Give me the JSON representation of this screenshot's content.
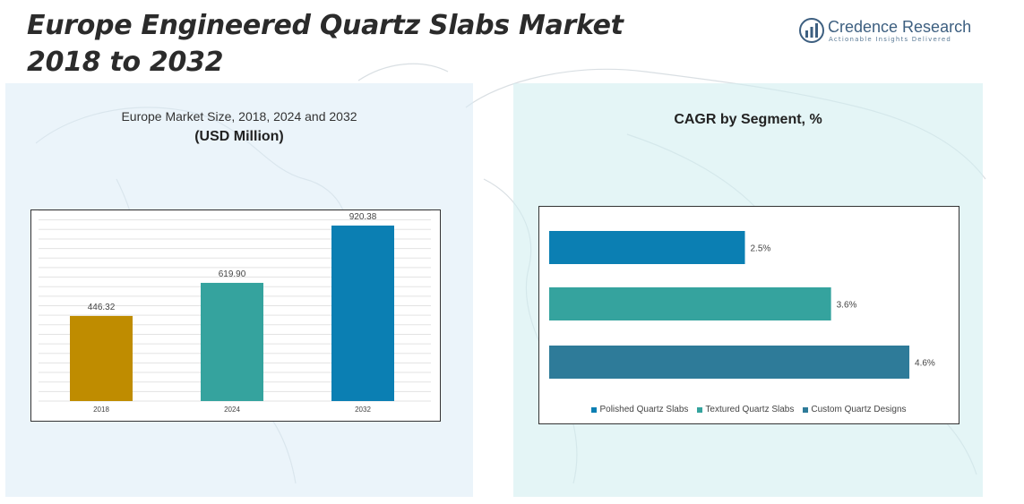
{
  "title_line1": "Europe Engineered Quartz Slabs Market",
  "title_line2": "2018 to 2032",
  "brand": {
    "name": "Credence Research",
    "tagline": "Actionable Insights Delivered",
    "logo_icon": "bar-chart-circle-icon"
  },
  "colors": {
    "gold": "#bf8c00",
    "teal": "#35a39e",
    "blue": "#0b7fb3",
    "steel": "#2e7b99"
  },
  "chart_data": [
    {
      "type": "bar",
      "title": "Europe Market Size, 2018, 2024 and 2032",
      "subtitle": "(USD Million)",
      "categories": [
        "2018",
        "2024",
        "2032"
      ],
      "values": [
        446.32,
        619.9,
        920.38
      ],
      "value_labels": [
        "446.32",
        "619.90",
        "920.38"
      ],
      "bar_colors": [
        "#bf8c00",
        "#35a39e",
        "#0b7fb3"
      ],
      "ylim": [
        0,
        1000
      ],
      "grid": true
    },
    {
      "type": "bar",
      "orientation": "horizontal",
      "title": "CAGR by Segment, %",
      "categories": [
        "Polished Quartz Slabs",
        "Textured Quartz Slabs",
        "Custom Quartz Designs"
      ],
      "values": [
        2.5,
        3.6,
        4.6
      ],
      "value_labels": [
        "2.5%",
        "3.6%",
        "4.6%"
      ],
      "bar_colors": [
        "#0b7fb3",
        "#35a39e",
        "#2e7b99"
      ],
      "xlim": [
        0,
        5
      ],
      "legend_position": "bottom",
      "grid": false
    }
  ]
}
